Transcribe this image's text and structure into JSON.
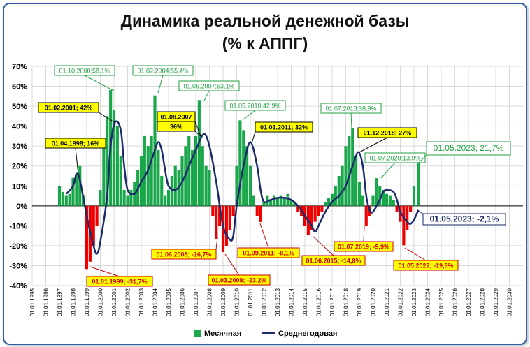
{
  "chart_data": {
    "type": "bar",
    "title": "Динамика реальной денежной базы",
    "subtitle": "(% к АППГ)",
    "ylim": [
      -40,
      70
    ],
    "yticks": [
      -40,
      -30,
      -20,
      -10,
      0,
      10,
      20,
      30,
      40,
      50,
      60,
      70
    ],
    "ytick_labels": [
      "-40%",
      "-30%",
      "-20%",
      "-10%",
      "0%",
      "10%",
      "20%",
      "30%",
      "40%",
      "50%",
      "60%",
      "70%"
    ],
    "xlim": [
      1995.0,
      2031.0
    ],
    "x_tick_labels": [
      "01.01.1995",
      "01.01.1996",
      "01.01.1997",
      "01.01.1998",
      "01.01.1999",
      "01.01.2000",
      "01.01.2001",
      "01.01.2002",
      "01.01.2003",
      "01.01.2004",
      "01.01.2005",
      "01.01.2006",
      "01.01.2007",
      "01.01.2008",
      "01.01.2009",
      "01.01.2010",
      "01.01.2011",
      "01.01.2012",
      "01.01.2013",
      "01.01.2014",
      "01.01.2015",
      "01.01.2016",
      "01.01.2017",
      "01.01.2018",
      "01.01.2019",
      "01.01.2020",
      "01.01.2021",
      "01.01.2022",
      "01.01.2023",
      "01.01.2024",
      "01.01.2025",
      "01.01.2026",
      "01.01.2027",
      "01.01.2028",
      "01.01.2029",
      "01.01.2030"
    ],
    "grid": true,
    "legend_position": "bottom",
    "series": [
      {
        "name": "Месячная",
        "kind": "bar",
        "color_positive": "#1aa64a",
        "color_negative": "#ee0000",
        "points": [
          [
            1997.0,
            10
          ],
          [
            1997.25,
            7
          ],
          [
            1997.5,
            5
          ],
          [
            1997.75,
            6
          ],
          [
            1998.0,
            14
          ],
          [
            1998.25,
            16
          ],
          [
            1998.5,
            20
          ],
          [
            1998.75,
            5
          ],
          [
            1999.0,
            -31.7
          ],
          [
            1999.25,
            -28
          ],
          [
            1999.5,
            -20
          ],
          [
            1999.75,
            -10
          ],
          [
            2000.0,
            8
          ],
          [
            2000.25,
            30
          ],
          [
            2000.5,
            45
          ],
          [
            2000.75,
            58.1
          ],
          [
            2001.0,
            48
          ],
          [
            2001.25,
            40
          ],
          [
            2001.5,
            25
          ],
          [
            2001.75,
            8
          ],
          [
            2002.0,
            5
          ],
          [
            2002.25,
            8
          ],
          [
            2002.5,
            12
          ],
          [
            2002.75,
            18
          ],
          [
            2003.0,
            25
          ],
          [
            2003.25,
            35
          ],
          [
            2003.5,
            30
          ],
          [
            2003.75,
            35
          ],
          [
            2004.0,
            55.4
          ],
          [
            2004.25,
            28
          ],
          [
            2004.5,
            15
          ],
          [
            2004.75,
            5
          ],
          [
            2005.0,
            8
          ],
          [
            2005.25,
            15
          ],
          [
            2005.5,
            20
          ],
          [
            2005.75,
            18
          ],
          [
            2006.0,
            25
          ],
          [
            2006.25,
            30
          ],
          [
            2006.5,
            35
          ],
          [
            2006.75,
            28
          ],
          [
            2007.0,
            35
          ],
          [
            2007.25,
            53.1
          ],
          [
            2007.5,
            30
          ],
          [
            2007.75,
            20
          ],
          [
            2008.0,
            18
          ],
          [
            2008.25,
            -5
          ],
          [
            2008.5,
            -16.7
          ],
          [
            2008.75,
            -10
          ],
          [
            2009.0,
            -23.2
          ],
          [
            2009.25,
            -20
          ],
          [
            2009.5,
            -12
          ],
          [
            2009.75,
            -5
          ],
          [
            2010.0,
            20
          ],
          [
            2010.25,
            42.9
          ],
          [
            2010.5,
            38
          ],
          [
            2010.75,
            30
          ],
          [
            2011.0,
            20
          ],
          [
            2011.25,
            5
          ],
          [
            2011.5,
            -5
          ],
          [
            2011.75,
            -8.1
          ],
          [
            2012.0,
            2
          ],
          [
            2012.25,
            5
          ],
          [
            2012.5,
            3
          ],
          [
            2012.75,
            5
          ],
          [
            2013.0,
            4
          ],
          [
            2013.25,
            5
          ],
          [
            2013.5,
            4
          ],
          [
            2013.75,
            6
          ],
          [
            2014.0,
            3
          ],
          [
            2014.25,
            2
          ],
          [
            2014.5,
            -3
          ],
          [
            2014.75,
            -5
          ],
          [
            2015.0,
            -10
          ],
          [
            2015.25,
            -14.8
          ],
          [
            2015.5,
            -12
          ],
          [
            2015.75,
            -8
          ],
          [
            2016.0,
            -5
          ],
          [
            2016.25,
            -3
          ],
          [
            2016.5,
            2
          ],
          [
            2016.75,
            4
          ],
          [
            2017.0,
            6
          ],
          [
            2017.25,
            10
          ],
          [
            2017.5,
            15
          ],
          [
            2017.75,
            20
          ],
          [
            2018.0,
            30
          ],
          [
            2018.25,
            35
          ],
          [
            2018.5,
            38.9
          ],
          [
            2018.75,
            25
          ],
          [
            2019.0,
            12
          ],
          [
            2019.25,
            5
          ],
          [
            2019.5,
            -9.9
          ],
          [
            2019.75,
            -5
          ],
          [
            2020.0,
            5
          ],
          [
            2020.25,
            13.9
          ],
          [
            2020.5,
            10
          ],
          [
            2020.75,
            8
          ],
          [
            2021.0,
            6
          ],
          [
            2021.25,
            5
          ],
          [
            2021.5,
            3
          ],
          [
            2021.75,
            -3
          ],
          [
            2022.0,
            -8
          ],
          [
            2022.25,
            -19.8
          ],
          [
            2022.5,
            -12
          ],
          [
            2022.75,
            -3
          ],
          [
            2023.0,
            10
          ],
          [
            2023.33,
            21.7
          ]
        ]
      },
      {
        "name": "Среднегодовая",
        "kind": "line",
        "color": "#1a2a6c",
        "points": [
          [
            1997.5,
            6
          ],
          [
            1998.0,
            10
          ],
          [
            1998.25,
            16
          ],
          [
            1998.5,
            13
          ],
          [
            1999.0,
            -5
          ],
          [
            1999.5,
            -20
          ],
          [
            1999.75,
            -24
          ],
          [
            2000.0,
            -18
          ],
          [
            2000.5,
            5
          ],
          [
            2000.75,
            30
          ],
          [
            2001.08,
            42
          ],
          [
            2001.5,
            38
          ],
          [
            2001.75,
            20
          ],
          [
            2002.0,
            8
          ],
          [
            2002.5,
            6
          ],
          [
            2003.0,
            12
          ],
          [
            2003.5,
            18
          ],
          [
            2004.0,
            28
          ],
          [
            2004.25,
            32
          ],
          [
            2004.5,
            28
          ],
          [
            2004.75,
            18
          ],
          [
            2005.0,
            10
          ],
          [
            2005.5,
            8
          ],
          [
            2006.0,
            12
          ],
          [
            2006.5,
            20
          ],
          [
            2007.0,
            28
          ],
          [
            2007.58,
            36
          ],
          [
            2008.0,
            30
          ],
          [
            2008.5,
            12
          ],
          [
            2009.0,
            -10
          ],
          [
            2009.5,
            -17
          ],
          [
            2009.75,
            -15
          ],
          [
            2010.0,
            0
          ],
          [
            2010.5,
            20
          ],
          [
            2011.0,
            32
          ],
          [
            2011.5,
            20
          ],
          [
            2011.75,
            8
          ],
          [
            2012.0,
            2
          ],
          [
            2012.5,
            3
          ],
          [
            2013.0,
            4
          ],
          [
            2013.5,
            4
          ],
          [
            2014.0,
            3
          ],
          [
            2014.5,
            0
          ],
          [
            2015.0,
            -5
          ],
          [
            2015.5,
            -10
          ],
          [
            2015.75,
            -13
          ],
          [
            2016.0,
            -10
          ],
          [
            2016.5,
            -3
          ],
          [
            2017.0,
            2
          ],
          [
            2017.5,
            5
          ],
          [
            2018.0,
            10
          ],
          [
            2018.5,
            20
          ],
          [
            2018.92,
            27
          ],
          [
            2019.25,
            20
          ],
          [
            2019.5,
            5
          ],
          [
            2019.75,
            -2
          ],
          [
            2020.0,
            -3
          ],
          [
            2020.5,
            3
          ],
          [
            2020.75,
            7
          ],
          [
            2021.0,
            8
          ],
          [
            2021.5,
            7
          ],
          [
            2021.75,
            3
          ],
          [
            2022.0,
            -3
          ],
          [
            2022.5,
            -8
          ],
          [
            2022.75,
            -9
          ],
          [
            2023.0,
            -7
          ],
          [
            2023.33,
            -2.1
          ]
        ]
      }
    ],
    "annotations": [
      {
        "text": "01.10.2000;58,1%",
        "style": "green"
      },
      {
        "text": "01.02.2004;55,4%",
        "style": "green"
      },
      {
        "text": "01.06.2007;53,1%",
        "style": "green"
      },
      {
        "text": "01.05.2010;42,9%",
        "style": "green"
      },
      {
        "text": "01.07.2018;38,9%",
        "style": "green"
      },
      {
        "text": "01.07.2020;13,9%",
        "style": "green"
      },
      {
        "text": "01.05.2023; 21,7%",
        "style": "green-big"
      },
      {
        "text": "01.02.2001; 42%",
        "style": "yellow"
      },
      {
        "text": "01.04.1998; 16%",
        "style": "yellow"
      },
      {
        "text": "01.08.2007",
        "style": "yellow"
      },
      {
        "text": "36%",
        "style": "yellow"
      },
      {
        "text": "01.01.2011; 32%",
        "style": "yellow"
      },
      {
        "text": "01.12.2018; 27%",
        "style": "yellow"
      },
      {
        "text": "01.05.2023; -2,1%",
        "style": "navy"
      },
      {
        "text": "01.01.1999; -31,7%",
        "style": "red"
      },
      {
        "text": "01.06.2008; -16,7%",
        "style": "red"
      },
      {
        "text": "01.03.2009; -23,2%",
        "style": "red"
      },
      {
        "text": "01.09.2011; -8,1%",
        "style": "red"
      },
      {
        "text": "01.06.2015; -14,8%",
        "style": "red"
      },
      {
        "text": "01.07.2019; -9,9%",
        "style": "red"
      },
      {
        "text": "01.05.2022; -19,8%",
        "style": "red"
      }
    ],
    "legend": [
      "Месячная",
      "Среднегодовая"
    ]
  }
}
